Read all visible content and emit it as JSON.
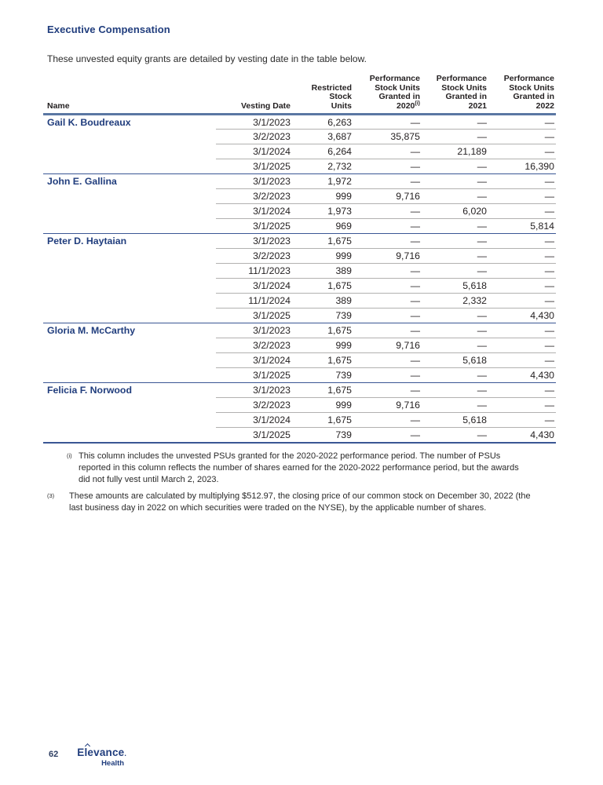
{
  "page": {
    "section_heading": "Executive Compensation",
    "intro_text": "These unvested equity grants are detailed by vesting date in the table below.",
    "page_number": "62",
    "logo": {
      "line1": "Elevance",
      "line2": "Health"
    }
  },
  "colors": {
    "brand_navy": "#203d7d",
    "header_rule_blue": "#5b77a3",
    "group_rule_blue": "#3a5694",
    "row_rule_gray": "#b2b1b0",
    "body_text": "#231f20"
  },
  "table": {
    "headers": {
      "name": "Name",
      "vesting_date": "Vesting Date",
      "rsu": "Restricted\nStock\nUnits",
      "psu2020": "Performance\nStock Units\nGranted in\n2020",
      "psu2020_sup": "(i)",
      "psu2021": "Performance\nStock Units\nGranted in\n2021",
      "psu2022": "Performance\nStock Units\nGranted in\n2022"
    },
    "groups": [
      {
        "name": "Gail K. Boudreaux",
        "rows": [
          [
            "3/1/2023",
            "6,263",
            "—",
            "—",
            "—"
          ],
          [
            "3/2/2023",
            "3,687",
            "35,875",
            "—",
            "—"
          ],
          [
            "3/1/2024",
            "6,264",
            "—",
            "21,189",
            "—"
          ],
          [
            "3/1/2025",
            "2,732",
            "—",
            "—",
            "16,390"
          ]
        ]
      },
      {
        "name": "John E. Gallina",
        "rows": [
          [
            "3/1/2023",
            "1,972",
            "—",
            "—",
            "—"
          ],
          [
            "3/2/2023",
            "999",
            "9,716",
            "—",
            "—"
          ],
          [
            "3/1/2024",
            "1,973",
            "—",
            "6,020",
            "—"
          ],
          [
            "3/1/2025",
            "969",
            "—",
            "—",
            "5,814"
          ]
        ]
      },
      {
        "name": "Peter D. Haytaian",
        "rows": [
          [
            "3/1/2023",
            "1,675",
            "—",
            "—",
            "—"
          ],
          [
            "3/2/2023",
            "999",
            "9,716",
            "—",
            "—"
          ],
          [
            "11/1/2023",
            "389",
            "—",
            "—",
            "—"
          ],
          [
            "3/1/2024",
            "1,675",
            "—",
            "5,618",
            "—"
          ],
          [
            "11/1/2024",
            "389",
            "—",
            "2,332",
            "—"
          ],
          [
            "3/1/2025",
            "739",
            "—",
            "—",
            "4,430"
          ]
        ]
      },
      {
        "name": "Gloria M. McCarthy",
        "rows": [
          [
            "3/1/2023",
            "1,675",
            "—",
            "—",
            "—"
          ],
          [
            "3/2/2023",
            "999",
            "9,716",
            "—",
            "—"
          ],
          [
            "3/1/2024",
            "1,675",
            "—",
            "5,618",
            "—"
          ],
          [
            "3/1/2025",
            "739",
            "—",
            "—",
            "4,430"
          ]
        ]
      },
      {
        "name": "Felicia F. Norwood",
        "rows": [
          [
            "3/1/2023",
            "1,675",
            "—",
            "—",
            "—"
          ],
          [
            "3/2/2023",
            "999",
            "9,716",
            "—",
            "—"
          ],
          [
            "3/1/2024",
            "1,675",
            "—",
            "5,618",
            "—"
          ],
          [
            "3/1/2025",
            "739",
            "—",
            "—",
            "4,430"
          ]
        ]
      }
    ]
  },
  "footnotes": [
    {
      "marker": "(i)",
      "text": "This column includes the unvested PSUs granted for the 2020-2022 performance period. The number of PSUs reported in this column reflects the number of shares earned for the 2020-2022 performance period, but the awards did not fully vest until March 2, 2023."
    },
    {
      "marker": "(3)",
      "text": "These amounts are calculated by multiplying $512.97, the closing price of our common stock on December 30, 2022 (the last business day in 2022 on which securities were traded on the NYSE), by the applicable number of shares."
    }
  ]
}
